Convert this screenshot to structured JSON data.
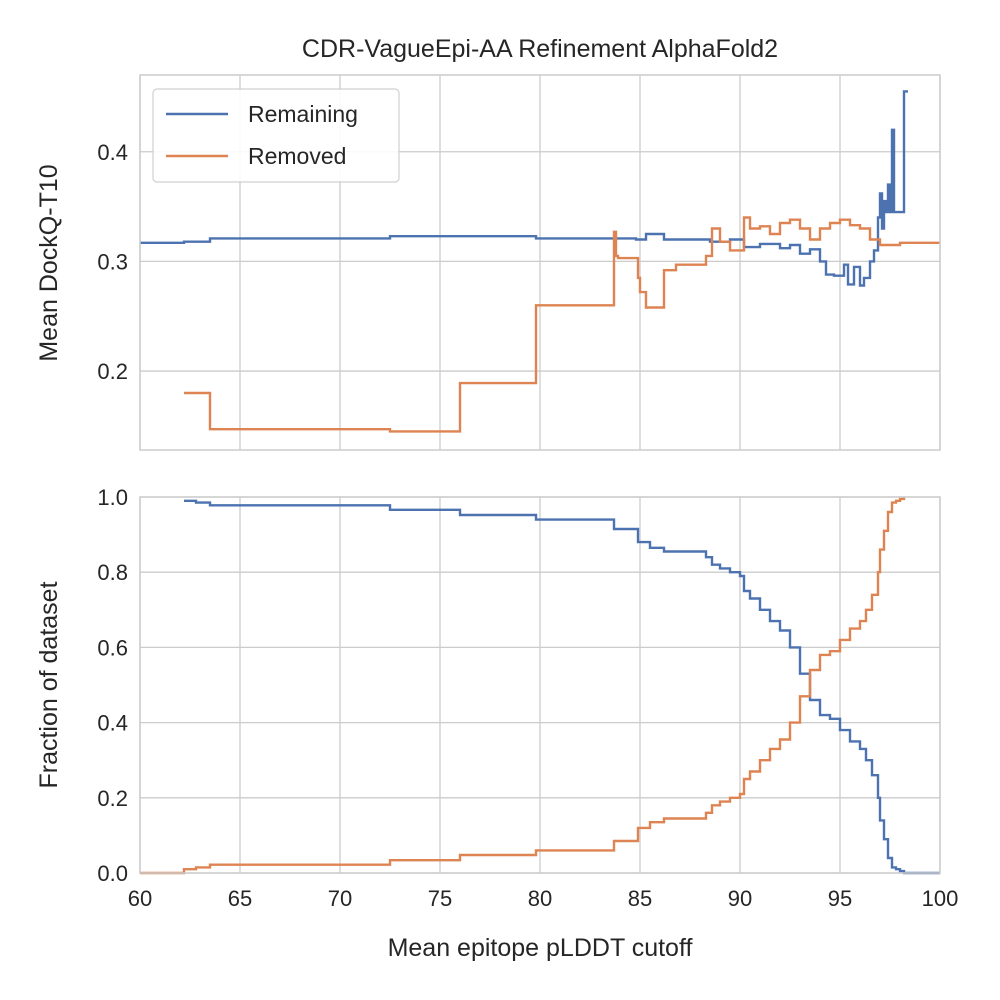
{
  "chart_data": [
    {
      "type": "line",
      "title": "CDR-VagueEpi-AA Refinement AlphaFold2",
      "xlabel": "",
      "ylabel": "Mean DockQ-T10",
      "xlim": [
        60,
        100
      ],
      "ylim": [
        0.128,
        0.47
      ],
      "xticks": [
        60,
        65,
        70,
        75,
        80,
        85,
        90,
        95,
        100
      ],
      "yticks": [
        0.2,
        0.3,
        0.4
      ],
      "ytick_labels": [
        "0.2",
        "0.3",
        "0.4"
      ],
      "show_x_tick_labels": false,
      "grid": true,
      "legend": "top-left",
      "series": [
        {
          "name": "Remaining",
          "color": "#4c72b0",
          "step": true,
          "x": [
            60,
            62.2,
            63.5,
            72.5,
            79.8,
            84.8,
            85.3,
            86.2,
            88.5,
            89.5,
            90.2,
            91.0,
            92.0,
            92.5,
            93.0,
            93.5,
            94.0,
            94.3,
            94.7,
            95.2,
            95.4,
            95.7,
            96.0,
            96.2,
            96.5,
            96.7,
            96.9,
            97.0,
            97.1,
            97.2,
            97.3,
            97.4,
            97.5,
            97.6,
            97.7,
            97.8,
            98.2,
            98.4
          ],
          "y": [
            0.317,
            0.318,
            0.321,
            0.323,
            0.321,
            0.32,
            0.325,
            0.32,
            0.318,
            0.32,
            0.313,
            0.316,
            0.312,
            0.315,
            0.307,
            0.311,
            0.3,
            0.288,
            0.287,
            0.297,
            0.279,
            0.295,
            0.278,
            0.285,
            0.3,
            0.31,
            0.34,
            0.362,
            0.33,
            0.355,
            0.345,
            0.37,
            0.345,
            0.42,
            0.345,
            0.345,
            0.455,
            0.455
          ]
        },
        {
          "name": "Removed",
          "color": "#dd8452",
          "step": true,
          "x": [
            62.2,
            63.5,
            72.5,
            76.0,
            79.8,
            83.7,
            83.8,
            83.9,
            84.9,
            85.0,
            85.3,
            85.5,
            86.2,
            86.8,
            88.3,
            88.6,
            89.0,
            89.5,
            90.0,
            90.2,
            90.5,
            91.0,
            91.5,
            92.0,
            92.5,
            93.0,
            93.5,
            94.0,
            94.5,
            95.0,
            95.5,
            96.0,
            96.5,
            97.0,
            98.0,
            100.0
          ],
          "y": [
            0.18,
            0.147,
            0.145,
            0.189,
            0.26,
            0.327,
            0.305,
            0.303,
            0.285,
            0.272,
            0.258,
            0.258,
            0.292,
            0.297,
            0.305,
            0.33,
            0.318,
            0.31,
            0.31,
            0.34,
            0.33,
            0.332,
            0.325,
            0.335,
            0.338,
            0.33,
            0.32,
            0.33,
            0.335,
            0.338,
            0.333,
            0.33,
            0.32,
            0.315,
            0.317,
            0.317
          ]
        }
      ]
    },
    {
      "type": "line",
      "title": "",
      "xlabel": "Mean epitope pLDDT cutoff",
      "ylabel": "Fraction of dataset",
      "xlim": [
        60,
        100
      ],
      "ylim": [
        0,
        1.0
      ],
      "xticks": [
        60,
        65,
        70,
        75,
        80,
        85,
        90,
        95,
        100
      ],
      "xtick_labels": [
        "60",
        "65",
        "70",
        "75",
        "80",
        "85",
        "90",
        "95",
        "100"
      ],
      "yticks": [
        0.0,
        0.2,
        0.4,
        0.6,
        0.8,
        1.0
      ],
      "ytick_labels": [
        "0.0",
        "0.2",
        "0.4",
        "0.6",
        "0.8",
        "1.0"
      ],
      "grid": true,
      "series": [
        {
          "name": "Remaining",
          "color": "#4c72b0",
          "step": true,
          "x": [
            62.2,
            62.8,
            63.5,
            72.5,
            76.0,
            79.8,
            83.7,
            84.9,
            85.5,
            86.2,
            88.3,
            88.6,
            89.0,
            89.5,
            90.0,
            90.2,
            90.5,
            91.0,
            91.5,
            92.0,
            92.5,
            93.0,
            93.5,
            94.0,
            94.5,
            95.0,
            95.5,
            96.0,
            96.3,
            96.6,
            96.9,
            97.0,
            97.2,
            97.4,
            97.6,
            97.8,
            98.0,
            98.2,
            99.0,
            100.0
          ],
          "y": [
            0.99,
            0.985,
            0.978,
            0.966,
            0.952,
            0.94,
            0.915,
            0.88,
            0.865,
            0.855,
            0.84,
            0.82,
            0.81,
            0.8,
            0.79,
            0.75,
            0.73,
            0.7,
            0.67,
            0.645,
            0.6,
            0.53,
            0.46,
            0.42,
            0.41,
            0.38,
            0.35,
            0.33,
            0.3,
            0.26,
            0.2,
            0.14,
            0.09,
            0.04,
            0.015,
            0.01,
            0.005,
            0.0,
            0.0,
            0.0
          ]
        },
        {
          "name": "Removed",
          "color": "#dd8452",
          "step": true,
          "x": [
            60.0,
            62.2,
            62.8,
            63.5,
            72.5,
            76.0,
            79.8,
            83.7,
            84.9,
            85.5,
            86.2,
            88.3,
            88.6,
            89.0,
            89.5,
            90.0,
            90.2,
            90.5,
            91.0,
            91.5,
            92.0,
            92.5,
            93.0,
            93.5,
            94.0,
            94.5,
            95.0,
            95.5,
            96.0,
            96.3,
            96.6,
            96.9,
            97.0,
            97.2,
            97.4,
            97.6,
            97.8,
            98.0,
            98.2
          ],
          "y": [
            0.0,
            0.01,
            0.015,
            0.022,
            0.034,
            0.048,
            0.06,
            0.085,
            0.12,
            0.135,
            0.145,
            0.16,
            0.18,
            0.19,
            0.2,
            0.21,
            0.25,
            0.27,
            0.3,
            0.33,
            0.355,
            0.4,
            0.47,
            0.54,
            0.58,
            0.59,
            0.62,
            0.65,
            0.67,
            0.7,
            0.74,
            0.8,
            0.86,
            0.91,
            0.96,
            0.985,
            0.99,
            0.995,
            1.0
          ]
        }
      ]
    }
  ]
}
